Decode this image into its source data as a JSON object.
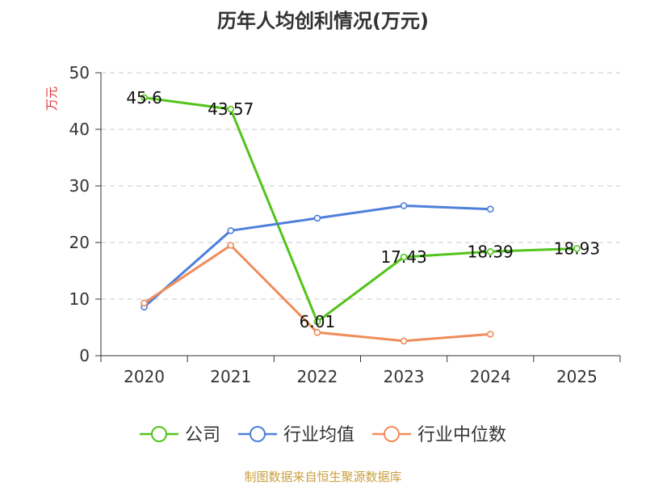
{
  "chart_data": {
    "type": "line",
    "title": "历年人均创利情况(万元)",
    "ylabel": "万元",
    "categories": [
      "2020",
      "2021",
      "2022",
      "2023",
      "2024",
      "2025"
    ],
    "ylim": [
      0,
      50
    ],
    "yticks": [
      "0",
      "10",
      "20",
      "30",
      "40",
      "50"
    ],
    "grid": true,
    "legend_position": "bottom",
    "series": [
      {
        "name": "公司",
        "color": "#52c41a",
        "values": [
          45.6,
          43.57,
          6.01,
          17.43,
          18.39,
          18.93
        ],
        "labels": [
          "45.6",
          "43.57",
          "6.01",
          "17.43",
          "18.39",
          "18.93"
        ]
      },
      {
        "name": "行业均值",
        "color": "#4e7fdb",
        "values": [
          8.6,
          22.1,
          24.3,
          26.5,
          25.9,
          null
        ]
      },
      {
        "name": "行业中位数",
        "color": "#f08c5a",
        "values": [
          9.3,
          19.5,
          4.1,
          2.6,
          3.8,
          null
        ]
      }
    ],
    "source": "制图数据来自恒生聚源数据库"
  }
}
